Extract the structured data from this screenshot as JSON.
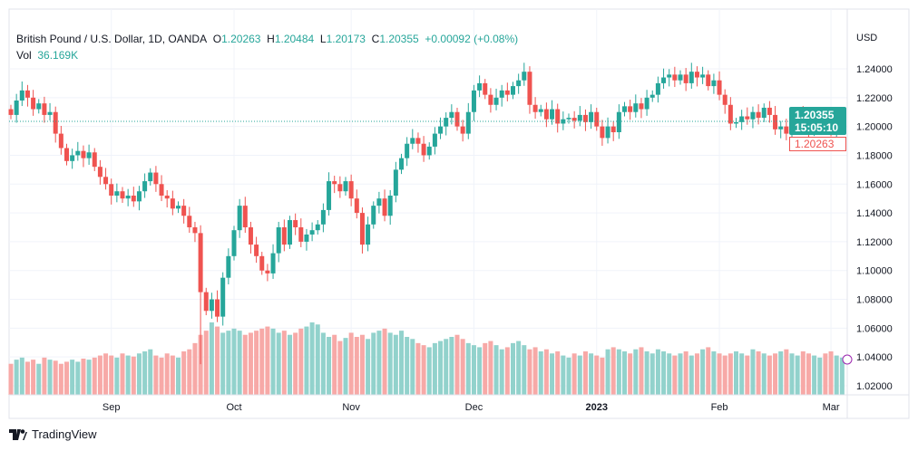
{
  "legend": {
    "symbol": "British Pound / U.S. Dollar, 1D, OANDA",
    "o_label": "O",
    "o": "1.20263",
    "h_label": "H",
    "h": "1.20484",
    "l_label": "L",
    "l": "1.20173",
    "c_label": "C",
    "c": "1.20355",
    "change": "+0.00092 (+0.08%)",
    "vol_label": "Vol",
    "vol": "36.169K"
  },
  "price_axis": {
    "currency": "USD",
    "last_price": "1.20355",
    "countdown": "15:05:10",
    "open_price": "1.20263"
  },
  "branding": "TradingView",
  "colors": {
    "up": "#26a69a",
    "down": "#ef5350",
    "up_vol": "#92d2cc",
    "down_vol": "#f7a9a7",
    "grid": "#f0f3fa"
  },
  "chart_data": {
    "type": "candlestick",
    "title": "British Pound / U.S. Dollar, 1D, OANDA",
    "ylabel": "USD",
    "ylim": [
      1.01,
      1.25
    ],
    "yticks": [
      "1.24000",
      "1.22000",
      "1.20000",
      "1.18000",
      "1.16000",
      "1.14000",
      "1.12000",
      "1.10000",
      "1.08000",
      "1.06000",
      "1.04000",
      "1.02000"
    ],
    "xticks": [
      {
        "label": "Sep",
        "index": 18
      },
      {
        "label": "Oct",
        "index": 40
      },
      {
        "label": "Nov",
        "index": 61
      },
      {
        "label": "Dec",
        "index": 83
      },
      {
        "label": "2023",
        "index": 105,
        "bold": true
      },
      {
        "label": "Feb",
        "index": 127
      },
      {
        "label": "Mar",
        "index": 147
      }
    ],
    "first_open": 1.212,
    "closes": [
      1.208,
      1.218,
      1.225,
      1.22,
      1.212,
      1.216,
      1.208,
      1.21,
      1.195,
      1.185,
      1.176,
      1.18,
      1.183,
      1.178,
      1.182,
      1.172,
      1.165,
      1.16,
      1.152,
      1.155,
      1.15,
      1.152,
      1.148,
      1.155,
      1.162,
      1.168,
      1.16,
      1.152,
      1.15,
      1.143,
      1.145,
      1.138,
      1.13,
      1.126,
      1.085,
      1.072,
      1.08,
      1.068,
      1.095,
      1.11,
      1.128,
      1.145,
      1.13,
      1.118,
      1.11,
      1.1,
      1.098,
      1.112,
      1.13,
      1.118,
      1.135,
      1.13,
      1.12,
      1.125,
      1.128,
      1.132,
      1.142,
      1.162,
      1.16,
      1.155,
      1.162,
      1.15,
      1.14,
      1.118,
      1.132,
      1.145,
      1.15,
      1.138,
      1.152,
      1.17,
      1.178,
      1.188,
      1.192,
      1.188,
      1.18,
      1.186,
      1.195,
      1.2,
      1.206,
      1.21,
      1.2,
      1.195,
      1.21,
      1.225,
      1.23,
      1.222,
      1.215,
      1.22,
      1.225,
      1.222,
      1.228,
      1.232,
      1.238,
      1.215,
      1.21,
      1.212,
      1.205,
      1.212,
      1.202,
      1.205,
      1.206,
      1.204,
      1.208,
      1.203,
      1.21,
      1.2,
      1.192,
      1.2,
      1.196,
      1.21,
      1.214,
      1.21,
      1.216,
      1.212,
      1.22,
      1.222,
      1.23,
      1.234,
      1.236,
      1.232,
      1.236,
      1.23,
      1.238,
      1.234,
      1.236,
      1.228,
      1.232,
      1.222,
      1.215,
      1.202,
      1.203,
      1.207,
      1.205,
      1.21,
      1.206,
      1.213,
      1.208,
      1.198,
      1.2,
      1.195,
      1.2,
      1.208,
      1.205,
      1.198,
      1.2,
      1.206,
      1.203,
      1.197,
      1.202,
      1.20355
    ],
    "volumes_k": [
      30,
      34,
      36,
      32,
      34,
      30,
      36,
      34,
      33,
      30,
      32,
      34,
      32,
      35,
      34,
      36,
      38,
      40,
      38,
      36,
      40,
      38,
      37,
      40,
      42,
      44,
      38,
      36,
      40,
      38,
      36,
      42,
      44,
      50,
      58,
      62,
      70,
      66,
      60,
      62,
      64,
      62,
      58,
      60,
      62,
      64,
      66,
      64,
      60,
      62,
      58,
      60,
      64,
      66,
      70,
      68,
      60,
      56,
      58,
      52,
      55,
      60,
      56,
      58,
      54,
      60,
      62,
      64,
      60,
      58,
      62,
      56,
      54,
      50,
      48,
      46,
      50,
      52,
      54,
      56,
      58,
      54,
      50,
      48,
      46,
      50,
      52,
      48,
      44,
      46,
      50,
      52,
      48,
      44,
      46,
      42,
      44,
      40,
      42,
      38,
      36,
      40,
      38,
      42,
      40,
      38,
      36,
      44,
      46,
      44,
      42,
      40,
      44,
      46,
      42,
      40,
      44,
      42,
      40,
      38,
      40,
      42,
      38,
      40,
      44,
      46,
      42,
      40,
      38,
      40,
      42,
      40,
      38,
      44,
      42,
      40,
      38,
      40,
      42,
      44,
      40,
      38,
      42,
      40,
      38,
      36,
      40,
      42,
      38,
      36
    ]
  }
}
